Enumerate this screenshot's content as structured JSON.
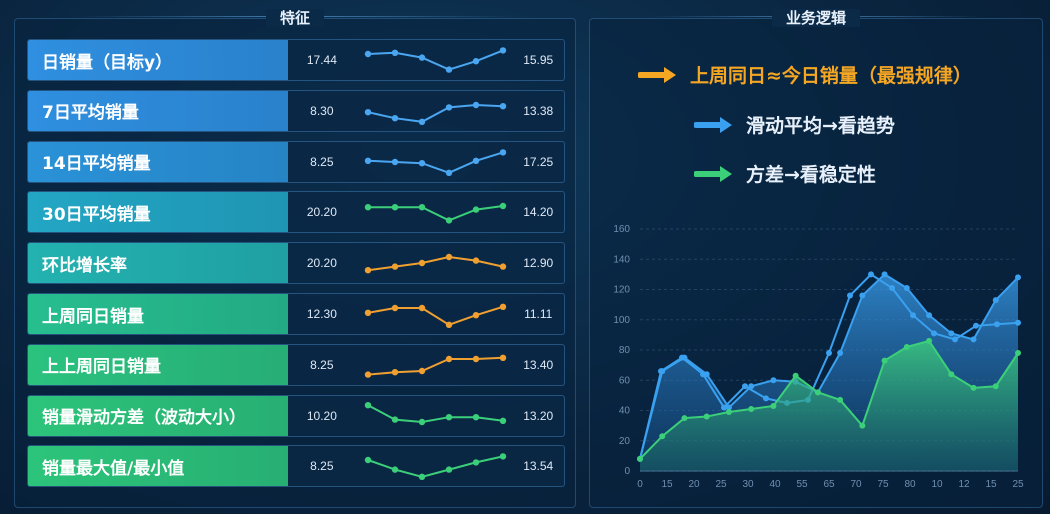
{
  "features_panel": {
    "title": "特征",
    "rows": [
      {
        "label": "日销量（目标y）",
        "left": "17.44",
        "right": "15.95",
        "color": "#2f8fe0",
        "spark_color": "#4aa6f0",
        "spark": [
          0.75,
          0.8,
          0.6,
          0.1,
          0.45,
          0.9
        ]
      },
      {
        "label": "7日平均销量",
        "left": "8.30",
        "right": "13.38",
        "color": "#2f8fe0",
        "spark_color": "#4aa6f0",
        "spark": [
          0.45,
          0.2,
          0.05,
          0.65,
          0.75,
          0.7
        ]
      },
      {
        "label": "14日平均销量",
        "left": "8.25",
        "right": "17.25",
        "color": "#2a92d8",
        "spark_color": "#4aa6f0",
        "spark": [
          0.55,
          0.5,
          0.45,
          0.05,
          0.55,
          0.9
        ]
      },
      {
        "label": "30日平均销量",
        "left": "20.20",
        "right": "14.20",
        "color": "#22a6c4",
        "spark_color": "#3ccf7a",
        "spark": [
          0.7,
          0.7,
          0.7,
          0.15,
          0.6,
          0.75
        ]
      },
      {
        "label": "环比增长率",
        "left": "20.20",
        "right": "12.90",
        "color": "#23b2b0",
        "spark_color": "#f0a030",
        "spark": [
          0.2,
          0.35,
          0.5,
          0.75,
          0.6,
          0.35
        ]
      },
      {
        "label": "上周同日销量",
        "left": "12.30",
        "right": "11.11",
        "color": "#27be8e",
        "spark_color": "#f0a030",
        "spark": [
          0.55,
          0.75,
          0.75,
          0.05,
          0.45,
          0.8
        ]
      },
      {
        "label": "上上周同日销量",
        "left": "8.25",
        "right": "13.40",
        "color": "#2bc27e",
        "spark_color": "#f0a030",
        "spark": [
          0.1,
          0.2,
          0.25,
          0.75,
          0.75,
          0.8
        ]
      },
      {
        "label": "销量滑动方差（波动大小）",
        "left": "10.20",
        "right": "13.20",
        "color": "#2cc47a",
        "spark_color": "#3ccf7a",
        "spark": [
          0.95,
          0.35,
          0.25,
          0.45,
          0.45,
          0.3
        ]
      },
      {
        "label": "销量最大值/最小值",
        "left": "8.25",
        "right": "13.54",
        "color": "#2cc47a",
        "spark_color": "#3ccf7a",
        "spark": [
          0.75,
          0.35,
          0.05,
          0.35,
          0.65,
          0.9
        ]
      }
    ]
  },
  "logic_panel": {
    "title": "业务逻辑",
    "items": [
      {
        "text": "上周同日≈今日销量（最强规律）",
        "color": "#f5a623",
        "arrow": "orange-arrow-icon"
      },
      {
        "text": "滑动平均→看趋势",
        "color": "#ffffff",
        "arrow_color": "#3aa0f0",
        "arrow": "blue-arrow-icon"
      },
      {
        "text": "方差→看稳定性",
        "color": "#ffffff",
        "arrow_color": "#3ccf7a",
        "arrow": "green-arrow-icon"
      }
    ]
  },
  "chart_data": {
    "type": "area",
    "x_ticks": [
      "0",
      "15",
      "20",
      "25",
      "30",
      "40",
      "55",
      "65",
      "70",
      "75",
      "80",
      "10",
      "12",
      "15",
      "25"
    ],
    "y_ticks": [
      "0",
      "20",
      "40",
      "60",
      "80",
      "100",
      "120",
      "140",
      "160"
    ],
    "ylim": [
      0,
      160
    ],
    "series": [
      {
        "color": "#3aa0f0",
        "values": [
          8,
          66,
          75,
          64,
          42,
          56,
          60,
          59,
          52,
          78,
          116,
          130,
          121,
          103,
          91,
          87,
          113,
          128
        ]
      },
      {
        "color": "#3aa0f0",
        "values": [
          8,
          66,
          75,
          64,
          42,
          56,
          48,
          45,
          47,
          78,
          116,
          130,
          121,
          103,
          91,
          87,
          96,
          97,
          98
        ]
      },
      {
        "color": "#3ccf7a",
        "values": [
          8,
          23,
          35,
          36,
          39,
          41,
          43,
          63,
          52,
          47,
          30,
          73,
          82,
          86,
          64,
          55,
          56,
          78
        ]
      }
    ]
  }
}
